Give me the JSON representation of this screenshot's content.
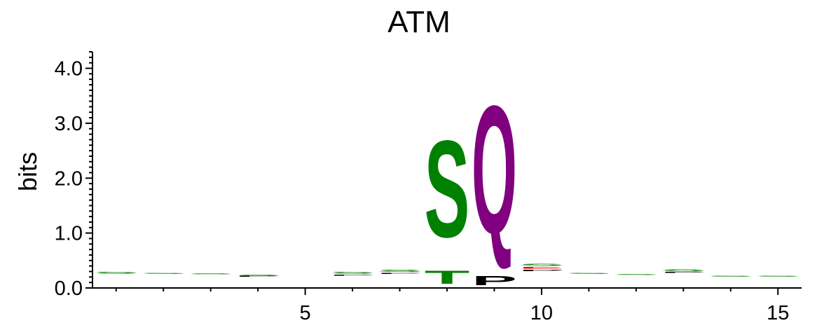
{
  "chart_data": {
    "type": "sequence-logo",
    "title": "ATM",
    "ylabel": "bits",
    "xlabel": "",
    "ylim": [
      0,
      4.3
    ],
    "xlim": [
      0.5,
      15.5
    ],
    "yticks": [
      "0.0",
      "1.0",
      "2.0",
      "3.0",
      "4.0"
    ],
    "yticks_values": [
      0,
      1,
      2,
      3,
      4
    ],
    "xticks": [
      "5",
      "10",
      "15"
    ],
    "xticks_values": [
      5,
      10,
      15
    ],
    "colors": {
      "polar": "#008000",
      "hydrophobic": "#000000",
      "amide": "#800080",
      "acidic": "#ff0000"
    },
    "positions": [
      {
        "pos": 1,
        "letters": [
          {
            "aa": "S",
            "bits": 0.05,
            "color": "#008000"
          }
        ],
        "base": 0.25
      },
      {
        "pos": 2,
        "letters": [
          {
            "aa": "S",
            "bits": 0.03,
            "color": "#008000"
          }
        ],
        "base": 0.25
      },
      {
        "pos": 3,
        "letters": [
          {
            "aa": "S",
            "bits": 0.03,
            "color": "#008000"
          }
        ],
        "base": 0.24
      },
      {
        "pos": 4,
        "letters": [
          {
            "aa": "P",
            "bits": 0.02,
            "color": "#000000"
          },
          {
            "aa": "S",
            "bits": 0.03,
            "color": "#008000"
          }
        ],
        "base": 0.2
      },
      {
        "pos": 5,
        "letters": [],
        "base": 0
      },
      {
        "pos": 6,
        "letters": [
          {
            "aa": "P",
            "bits": 0.03,
            "color": "#000000"
          },
          {
            "aa": "S",
            "bits": 0.05,
            "color": "#008000"
          }
        ],
        "base": 0.22
      },
      {
        "pos": 7,
        "letters": [
          {
            "aa": "P",
            "bits": 0.03,
            "color": "#000000"
          },
          {
            "aa": "S",
            "bits": 0.07,
            "color": "#008000"
          }
        ],
        "base": 0.25
      },
      {
        "pos": 8,
        "letters": [
          {
            "aa": "T",
            "bits": 0.38,
            "color": "#008000"
          },
          {
            "aa": "S",
            "bits": 2.82,
            "color": "#008000"
          }
        ],
        "base": 0
      },
      {
        "pos": 9,
        "letters": [
          {
            "aa": "P",
            "bits": 0.27,
            "color": "#000000"
          },
          {
            "aa": "Q",
            "bits": 3.73,
            "color": "#800080"
          }
        ],
        "base": 0
      },
      {
        "pos": 10,
        "letters": [
          {
            "aa": "P",
            "bits": 0.04,
            "color": "#000000"
          },
          {
            "aa": "E",
            "bits": 0.05,
            "color": "#ff0000"
          },
          {
            "aa": "S",
            "bits": 0.06,
            "color": "#008000"
          }
        ],
        "base": 0.3
      },
      {
        "pos": 11,
        "letters": [
          {
            "aa": "S",
            "bits": 0.03,
            "color": "#008000"
          }
        ],
        "base": 0.25
      },
      {
        "pos": 12,
        "letters": [
          {
            "aa": "S",
            "bits": 0.02,
            "color": "#008000"
          }
        ],
        "base": 0.23
      },
      {
        "pos": 13,
        "letters": [
          {
            "aa": "P",
            "bits": 0.02,
            "color": "#000000"
          },
          {
            "aa": "S",
            "bits": 0.06,
            "color": "#008000"
          }
        ],
        "base": 0.27
      },
      {
        "pos": 14,
        "letters": [
          {
            "aa": "S",
            "bits": 0.02,
            "color": "#008000"
          }
        ],
        "base": 0.2
      },
      {
        "pos": 15,
        "letters": [
          {
            "aa": "S",
            "bits": 0.02,
            "color": "#008000"
          }
        ],
        "base": 0.2
      }
    ]
  }
}
